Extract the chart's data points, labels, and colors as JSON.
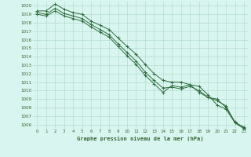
{
  "title": "Graphe pression niveau de la mer (hPa)",
  "xlim_min": -0.5,
  "xlim_max": 23.5,
  "ylim_min": 1005.5,
  "ylim_max": 1020.5,
  "yticks": [
    1006,
    1007,
    1008,
    1009,
    1010,
    1011,
    1012,
    1013,
    1014,
    1015,
    1016,
    1017,
    1018,
    1019,
    1020
  ],
  "xticks": [
    0,
    1,
    2,
    3,
    4,
    5,
    6,
    7,
    8,
    9,
    10,
    11,
    12,
    13,
    14,
    15,
    16,
    17,
    18,
    19,
    20,
    21,
    22,
    23
  ],
  "bg_color": "#d9f5ef",
  "grid_color": "#b2ddd0",
  "line_color": "#2d6b3c",
  "tick_color": "#336633",
  "series": [
    [
      1019.4,
      1019.4,
      1020.2,
      1019.6,
      1019.2,
      1019.0,
      1018.2,
      1017.7,
      1017.2,
      1016.2,
      1015.2,
      1014.3,
      1013.1,
      1012.0,
      1011.2,
      1011.0,
      1011.0,
      1010.7,
      1010.5,
      1009.5,
      1008.3,
      1007.8,
      1006.2,
      1005.7
    ],
    [
      1019.2,
      1019.0,
      1019.7,
      1019.1,
      1018.8,
      1018.5,
      1017.8,
      1017.2,
      1016.6,
      1015.5,
      1014.5,
      1013.5,
      1012.2,
      1011.2,
      1010.3,
      1010.4,
      1010.2,
      1010.5,
      1010.0,
      1009.2,
      1009.0,
      1008.0,
      1006.3,
      1005.6
    ],
    [
      1019.0,
      1018.8,
      1019.4,
      1018.8,
      1018.5,
      1018.2,
      1017.5,
      1016.9,
      1016.3,
      1015.2,
      1014.1,
      1013.1,
      1011.8,
      1010.8,
      1009.8,
      1010.6,
      1010.4,
      1010.7,
      1009.8,
      1009.2,
      1008.8,
      1008.2,
      1006.2,
      1005.5
    ]
  ]
}
